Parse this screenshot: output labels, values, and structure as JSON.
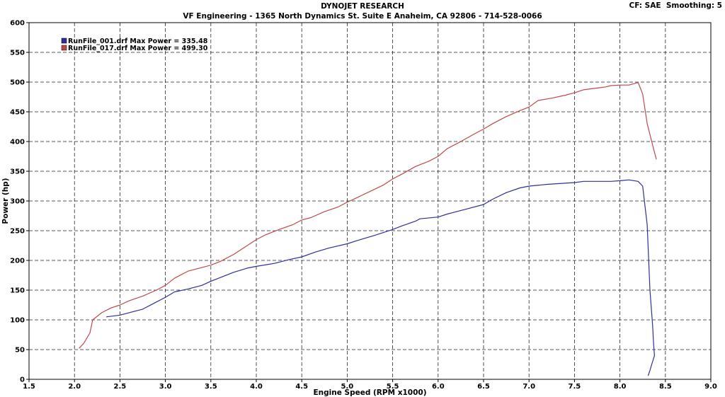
{
  "header": {
    "title": "DYNOJET RESEARCH",
    "subtitle": "VF Engineering - 1365 North Dynamics St. Suite E Anaheim, CA 92806 - 714-528-0066",
    "cf_info": "CF: SAE  Smoothing: 5"
  },
  "chart_data": {
    "type": "line",
    "xlabel": "Engine Speed (RPM x1000)",
    "ylabel": "Power (hp)",
    "xlim": [
      1.5,
      9.0
    ],
    "ylim": [
      0,
      600
    ],
    "xticks": [
      "1.5",
      "2.0",
      "2.5",
      "3.0",
      "3.5",
      "4.0",
      "4.5",
      "5.0",
      "5.5",
      "6.0",
      "6.5",
      "7.0",
      "7.5",
      "8.0",
      "8.5",
      "9.0"
    ],
    "yticks": [
      "0",
      "50",
      "100",
      "150",
      "200",
      "250",
      "300",
      "350",
      "400",
      "450",
      "500",
      "550",
      "600"
    ],
    "grid": true,
    "legend_position": "top-left",
    "series": [
      {
        "name": "RunFile_001.drf Max Power = 335.48",
        "color": "#2f2f9a",
        "points": [
          [
            2.35,
            105
          ],
          [
            2.5,
            108
          ],
          [
            2.6,
            112
          ],
          [
            2.75,
            118
          ],
          [
            2.9,
            130
          ],
          [
            3.0,
            138
          ],
          [
            3.1,
            147
          ],
          [
            3.25,
            152
          ],
          [
            3.4,
            158
          ],
          [
            3.5,
            165
          ],
          [
            3.6,
            171
          ],
          [
            3.75,
            180
          ],
          [
            3.9,
            187
          ],
          [
            4.0,
            190
          ],
          [
            4.2,
            195
          ],
          [
            4.35,
            201
          ],
          [
            4.5,
            206
          ],
          [
            4.65,
            214
          ],
          [
            4.8,
            221
          ],
          [
            5.0,
            228
          ],
          [
            5.1,
            233
          ],
          [
            5.3,
            242
          ],
          [
            5.5,
            252
          ],
          [
            5.6,
            258
          ],
          [
            5.75,
            266
          ],
          [
            5.8,
            270
          ],
          [
            6.0,
            273
          ],
          [
            6.1,
            278
          ],
          [
            6.3,
            286
          ],
          [
            6.5,
            294
          ],
          [
            6.6,
            303
          ],
          [
            6.75,
            314
          ],
          [
            6.9,
            322
          ],
          [
            7.0,
            325
          ],
          [
            7.2,
            328
          ],
          [
            7.5,
            331
          ],
          [
            7.6,
            333
          ],
          [
            7.8,
            333
          ],
          [
            7.9,
            333
          ],
          [
            8.0,
            334
          ],
          [
            8.1,
            335.5
          ],
          [
            8.2,
            333
          ],
          [
            8.25,
            325
          ],
          [
            8.3,
            260
          ],
          [
            8.33,
            150
          ],
          [
            8.36,
            90
          ],
          [
            8.37,
            60
          ],
          [
            8.38,
            40
          ],
          [
            8.35,
            25
          ],
          [
            8.33,
            15
          ],
          [
            8.31,
            6
          ]
        ]
      },
      {
        "name": "RunFile_017.drf Max Power = 499.30",
        "color": "#c0484a",
        "points": [
          [
            2.05,
            52
          ],
          [
            2.1,
            60
          ],
          [
            2.17,
            78
          ],
          [
            2.2,
            100
          ],
          [
            2.3,
            112
          ],
          [
            2.4,
            120
          ],
          [
            2.5,
            125
          ],
          [
            2.6,
            132
          ],
          [
            2.75,
            140
          ],
          [
            2.9,
            150
          ],
          [
            3.0,
            158
          ],
          [
            3.1,
            170
          ],
          [
            3.25,
            182
          ],
          [
            3.4,
            188
          ],
          [
            3.5,
            192
          ],
          [
            3.6,
            198
          ],
          [
            3.75,
            210
          ],
          [
            3.9,
            225
          ],
          [
            4.0,
            235
          ],
          [
            4.1,
            243
          ],
          [
            4.25,
            252
          ],
          [
            4.4,
            260
          ],
          [
            4.5,
            268
          ],
          [
            4.6,
            272
          ],
          [
            4.75,
            282
          ],
          [
            4.9,
            290
          ],
          [
            5.0,
            298
          ],
          [
            5.1,
            305
          ],
          [
            5.25,
            316
          ],
          [
            5.4,
            327
          ],
          [
            5.5,
            337
          ],
          [
            5.6,
            345
          ],
          [
            5.75,
            358
          ],
          [
            5.9,
            367
          ],
          [
            6.0,
            375
          ],
          [
            6.1,
            388
          ],
          [
            6.25,
            400
          ],
          [
            6.4,
            413
          ],
          [
            6.5,
            421
          ],
          [
            6.6,
            430
          ],
          [
            6.75,
            442
          ],
          [
            6.9,
            452
          ],
          [
            7.0,
            458
          ],
          [
            7.1,
            469
          ],
          [
            7.25,
            473
          ],
          [
            7.4,
            478
          ],
          [
            7.5,
            482
          ],
          [
            7.6,
            487
          ],
          [
            7.75,
            490
          ],
          [
            7.85,
            492
          ],
          [
            7.9,
            494
          ],
          [
            8.0,
            495
          ],
          [
            8.1,
            495
          ],
          [
            8.2,
            499.3
          ],
          [
            8.25,
            480
          ],
          [
            8.3,
            430
          ],
          [
            8.35,
            400
          ],
          [
            8.4,
            370
          ]
        ]
      }
    ]
  }
}
